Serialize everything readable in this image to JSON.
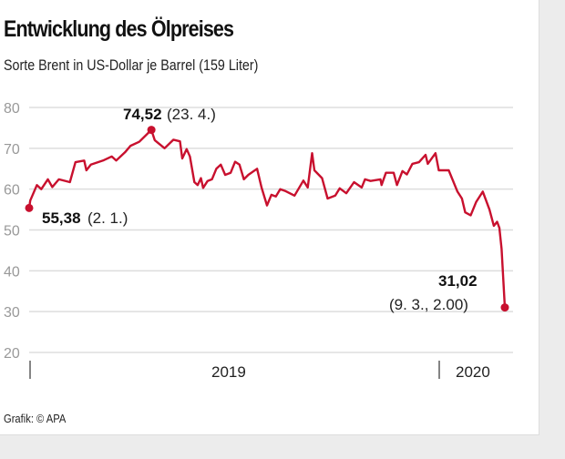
{
  "header": {
    "title": "Entwicklung des Ölpreises",
    "subtitle": "Sorte Brent in US-Dollar je Barrel (159 Liter)"
  },
  "footer": {
    "source": "Grafik: © APA"
  },
  "colors": {
    "line": "#c8102e",
    "grid": "#dddddd",
    "axis_text": "#999999"
  },
  "chart_data": {
    "type": "line",
    "title": "Entwicklung des Ölpreises",
    "subtitle": "Sorte Brent in US-Dollar je Barrel (159 Liter)",
    "xlabel": "",
    "ylabel": "",
    "ylim": [
      20,
      80
    ],
    "yticks": [
      "80",
      "70",
      "60",
      "50",
      "40",
      "30",
      "20"
    ],
    "xtick_labels": [
      "2019",
      "2020"
    ],
    "grid": true,
    "annotations": [
      {
        "value": "55,38",
        "date": "(2. 1.)"
      },
      {
        "value": "74,52",
        "date": "(23. 4.)"
      },
      {
        "value": "31,02",
        "date": "(9. 3., 2.00)"
      }
    ],
    "series": [
      {
        "x": [
          "2019-01-02",
          "2019-01-03",
          "2019-01-09",
          "2019-01-13",
          "2019-01-19",
          "2019-01-23",
          "2019-01-29",
          "2019-02-08",
          "2019-02-13",
          "2019-02-21",
          "2019-02-23",
          "2019-02-27",
          "2019-03-10",
          "2019-03-18",
          "2019-03-22",
          "2019-03-30",
          "2019-04-04",
          "2019-04-12",
          "2019-04-23",
          "2019-04-26",
          "2019-05-05",
          "2019-05-13",
          "2019-05-19",
          "2019-05-21",
          "2019-05-25",
          "2019-05-28",
          "2019-06-01",
          "2019-06-04",
          "2019-06-07",
          "2019-06-09",
          "2019-06-13",
          "2019-06-17",
          "2019-06-21",
          "2019-06-25",
          "2019-06-29",
          "2019-07-04",
          "2019-07-08",
          "2019-07-12",
          "2019-07-16",
          "2019-07-20",
          "2019-07-28",
          "2019-08-01",
          "2019-08-06",
          "2019-08-10",
          "2019-08-14",
          "2019-08-18",
          "2019-08-23",
          "2019-08-31",
          "2019-09-08",
          "2019-09-12",
          "2019-09-16",
          "2019-09-18",
          "2019-09-25",
          "2019-09-30",
          "2019-10-07",
          "2019-10-11",
          "2019-10-17",
          "2019-10-24",
          "2019-10-31",
          "2019-11-03",
          "2019-11-08",
          "2019-11-17",
          "2019-11-18",
          "2019-11-22",
          "2019-11-29",
          "2019-12-02",
          "2019-12-07",
          "2019-12-11",
          "2019-12-16",
          "2019-12-22",
          "2019-12-28",
          "2019-12-30",
          "2020-01-06",
          "2020-01-09",
          "2020-01-18",
          "2020-01-26",
          "2020-01-30",
          "2020-02-02",
          "2020-02-07",
          "2020-02-12",
          "2020-02-18",
          "2020-02-24",
          "2020-02-28",
          "2020-03-02",
          "2020-03-04",
          "2020-03-06",
          "2020-03-09"
        ],
        "y": [
          55.38,
          57.2,
          61,
          60,
          62.4,
          60.5,
          62.4,
          61.7,
          66.6,
          67,
          64.6,
          66,
          67,
          68,
          67,
          69,
          70.6,
          71.6,
          74.52,
          72,
          70,
          72.1,
          71.7,
          67.5,
          69.8,
          68,
          61.7,
          61,
          62.7,
          60.3,
          62,
          62.4,
          65,
          66,
          63.5,
          64,
          66.7,
          66,
          62.4,
          63.5,
          65,
          60.4,
          56,
          58.6,
          58.2,
          60,
          59.5,
          58.4,
          62.1,
          60.4,
          68.8,
          64.6,
          62.7,
          57.7,
          58.4,
          60.2,
          59,
          61.7,
          60.4,
          62.4,
          62,
          62.4,
          61,
          64,
          64,
          61,
          64.4,
          63.6,
          66.2,
          66.6,
          68.4,
          66.2,
          68.8,
          64.6,
          64.6,
          59.4,
          57.7,
          54.3,
          53.6,
          56.9,
          59.4,
          55,
          51,
          52,
          50.5,
          45.4,
          31.02
        ]
      }
    ]
  }
}
